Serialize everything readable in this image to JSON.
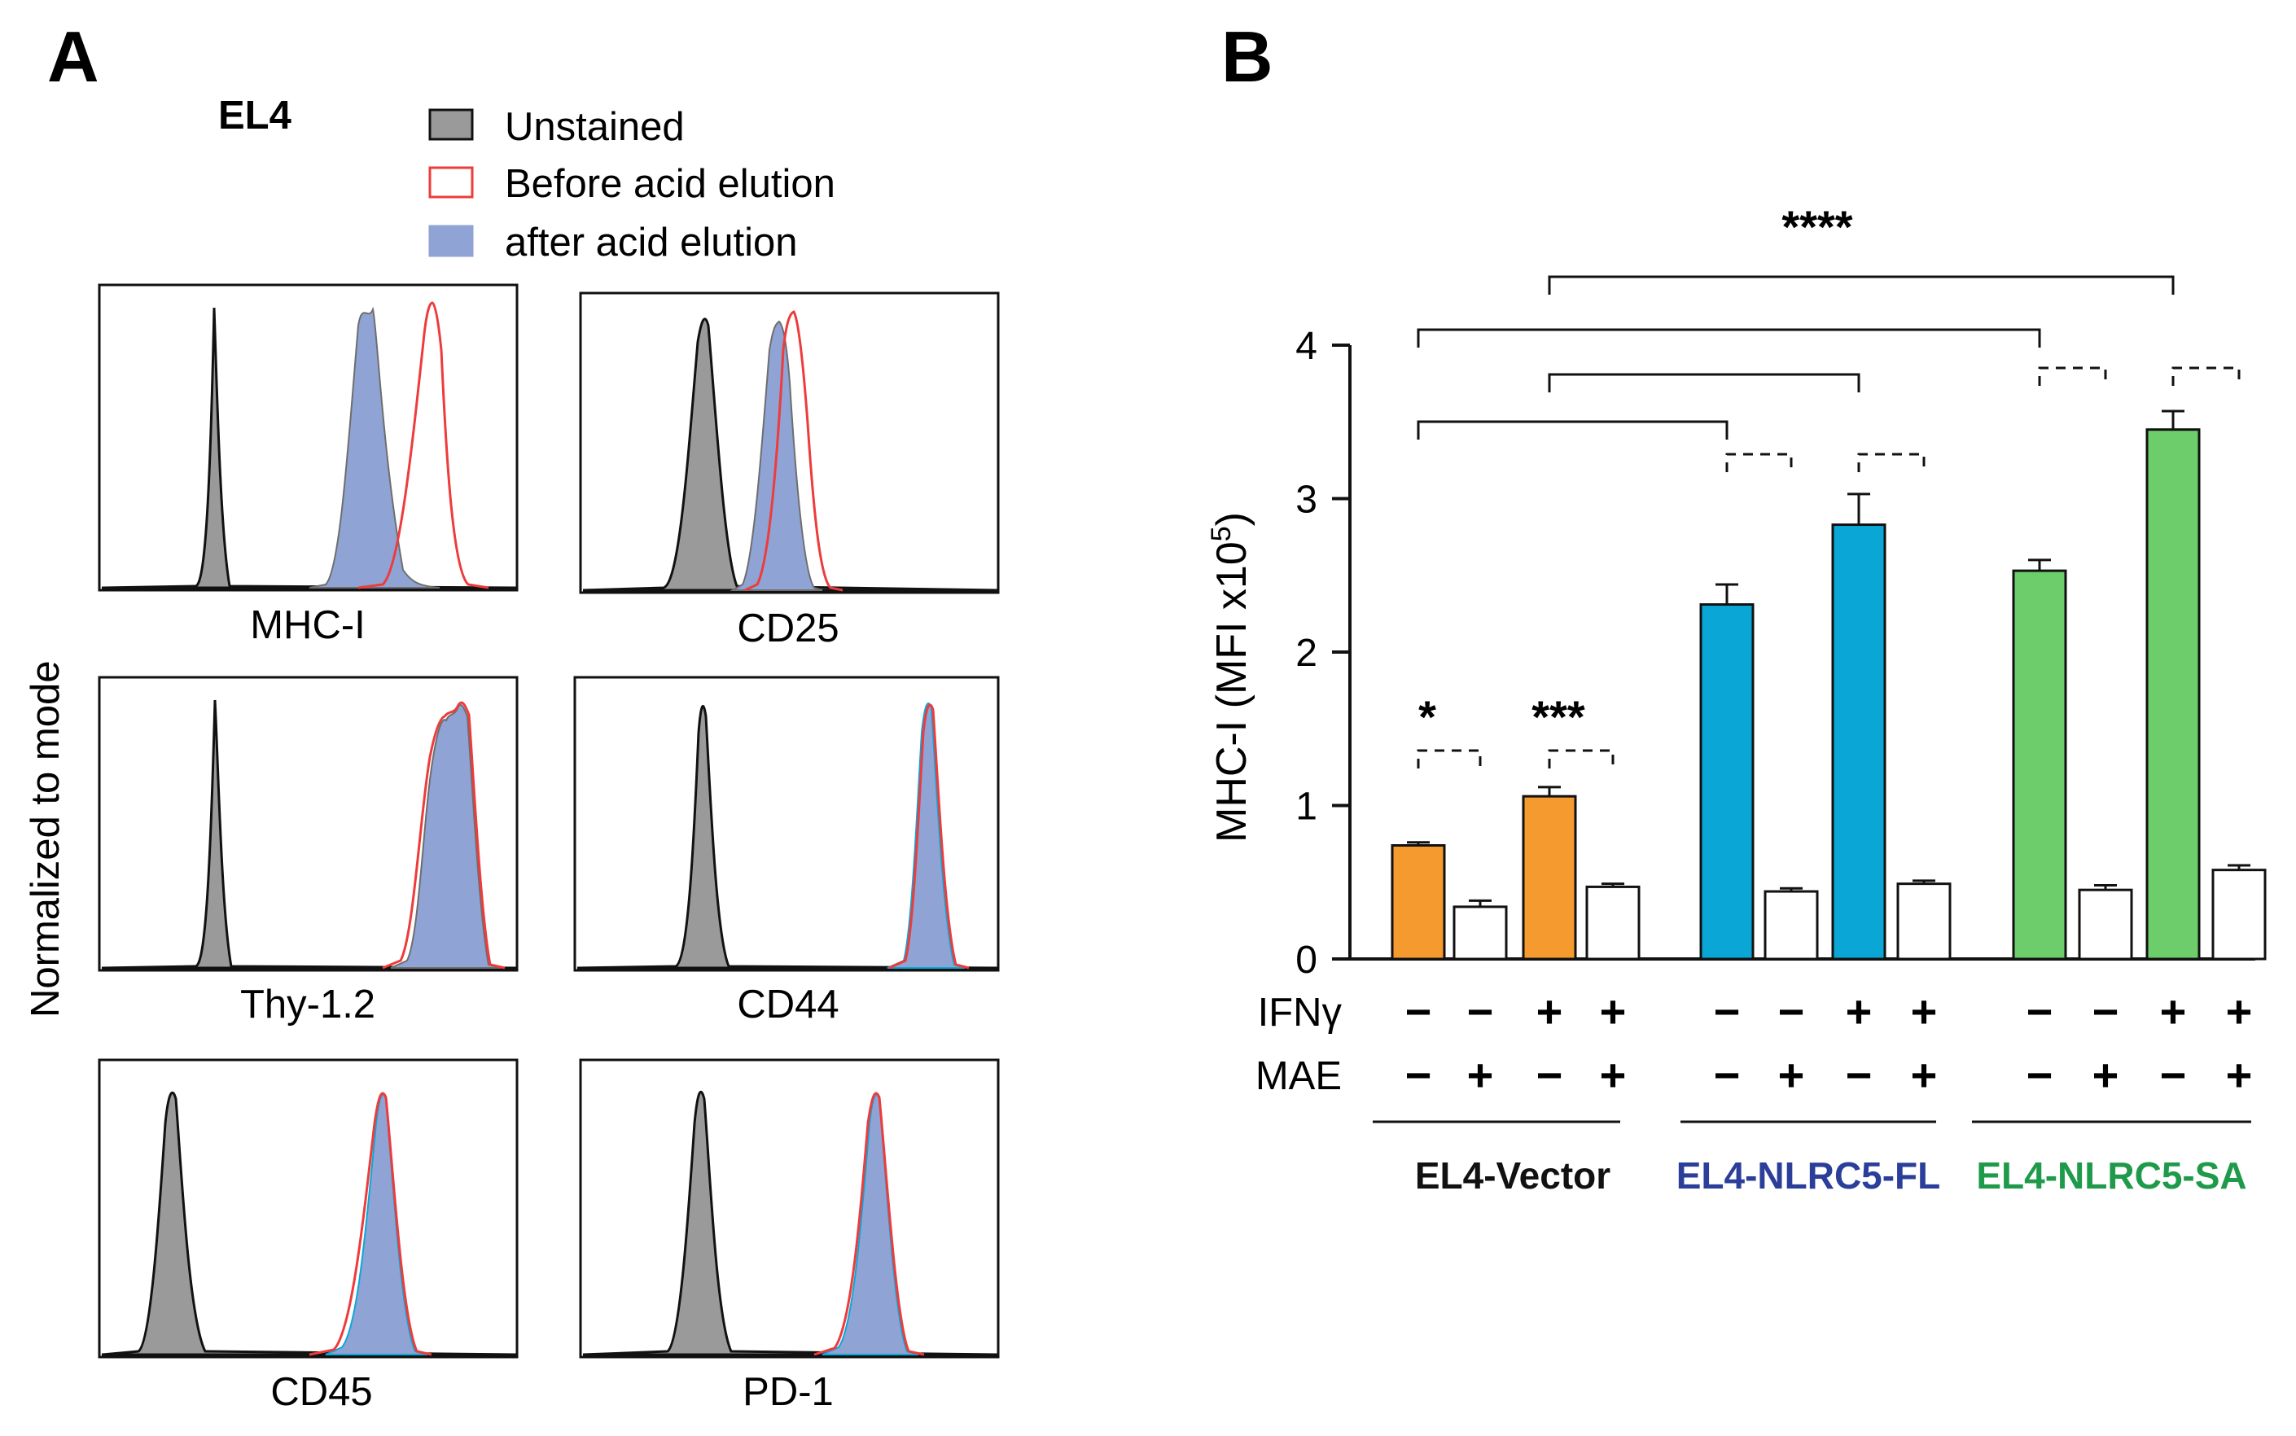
{
  "panel_a": {
    "letter": "A",
    "cell_line": "EL4",
    "y_label": "Normalized to mode",
    "legend": [
      {
        "label": "Unstained",
        "fill": "#9a9a9a",
        "stroke": "#111111"
      },
      {
        "label": "Before acid elution",
        "fill": "#ffffff",
        "stroke": "#ee3b3b"
      },
      {
        "label": "after acid elution",
        "fill": "#8fa3d4",
        "stroke": "#8fa3d4"
      }
    ],
    "histograms": [
      {
        "marker": "MHC-I"
      },
      {
        "marker": "CD25"
      },
      {
        "marker": "Thy-1.2"
      },
      {
        "marker": "CD44"
      },
      {
        "marker": "CD45"
      },
      {
        "marker": "PD-1"
      }
    ]
  },
  "panel_b": {
    "letter": "B",
    "row_labels": {
      "ifn": "IFNγ",
      "mae": "MAE"
    },
    "significance": {
      "top": "****",
      "vector_pair1": "*",
      "vector_pair2": "***"
    },
    "groups": [
      {
        "name": "EL4-Vector",
        "color": "#111111"
      },
      {
        "name": "EL4-NLRC5-FL",
        "color": "#2b3f9a"
      },
      {
        "name": "EL4-NLRC5-SA",
        "color": "#1f9a4a"
      }
    ]
  },
  "chart_data": {
    "type": "bar",
    "title": "",
    "xlabel": "",
    "ylabel": "MHC-I (MFI x10",
    "ylabel_sup": "5",
    "ylabel_end": ")",
    "ylim": [
      0,
      4
    ],
    "yticks": [
      "0",
      "1",
      "2",
      "3",
      "4"
    ],
    "categories": [
      {
        "group": "EL4-Vector",
        "ifn": "−",
        "mae": "−"
      },
      {
        "group": "EL4-Vector",
        "ifn": "−",
        "mae": "+"
      },
      {
        "group": "EL4-Vector",
        "ifn": "+",
        "mae": "−"
      },
      {
        "group": "EL4-Vector",
        "ifn": "+",
        "mae": "+"
      },
      {
        "group": "EL4-NLRC5-FL",
        "ifn": "−",
        "mae": "−"
      },
      {
        "group": "EL4-NLRC5-FL",
        "ifn": "−",
        "mae": "+"
      },
      {
        "group": "EL4-NLRC5-FL",
        "ifn": "+",
        "mae": "−"
      },
      {
        "group": "EL4-NLRC5-FL",
        "ifn": "+",
        "mae": "+"
      },
      {
        "group": "EL4-NLRC5-SA",
        "ifn": "−",
        "mae": "−"
      },
      {
        "group": "EL4-NLRC5-SA",
        "ifn": "−",
        "mae": "+"
      },
      {
        "group": "EL4-NLRC5-SA",
        "ifn": "+",
        "mae": "−"
      },
      {
        "group": "EL4-NLRC5-SA",
        "ifn": "+",
        "mae": "+"
      }
    ],
    "values": [
      0.74,
      0.34,
      1.06,
      0.47,
      2.31,
      0.44,
      2.83,
      0.49,
      2.53,
      0.45,
      3.45,
      0.58
    ],
    "errors": [
      0.02,
      0.04,
      0.06,
      0.02,
      0.13,
      0.02,
      0.2,
      0.02,
      0.07,
      0.03,
      0.12,
      0.03
    ],
    "bar_colors": [
      "#f59a2e",
      "#ffffff",
      "#f59a2e",
      "#ffffff",
      "#0aa7d6",
      "#ffffff",
      "#0aa7d6",
      "#ffffff",
      "#6ccd6a",
      "#ffffff",
      "#6ccd6a",
      "#ffffff"
    ]
  }
}
